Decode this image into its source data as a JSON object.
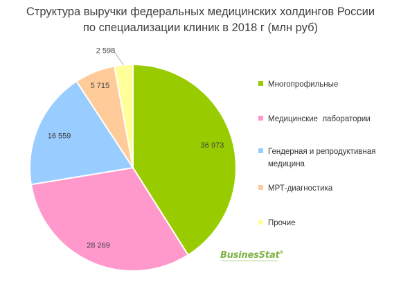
{
  "title": {
    "line1": "Структура выручки федеральных медицинских холдингов России",
    "line2": "по специализации клиник в 2018 г (млн руб)"
  },
  "chart_data": {
    "type": "pie",
    "title": "Структура выручки федеральных медицинских холдингов России по специализации клиник в 2018 г (млн руб)",
    "slices": [
      {
        "label": "Многопрофильные",
        "value": 36973,
        "value_text": "36 973",
        "color": "#99cc00"
      },
      {
        "label": "Медицинские  лаборатории",
        "value": 28269,
        "value_text": "28 269",
        "color": "#ff99cc"
      },
      {
        "label": "Гендерная и репродуктивная медицина",
        "value": 16559,
        "value_text": "16 559",
        "color": "#99ccff"
      },
      {
        "label": "МРТ-диагностика",
        "value": 5715,
        "value_text": "5 715",
        "color": "#ffcc99"
      },
      {
        "label": "Прочие",
        "value": 2598,
        "value_text": "2 598",
        "color": "#ffff99"
      }
    ],
    "start_angle": "12 o'clock",
    "direction": "clockwise",
    "legend_position": "right"
  },
  "legend": {
    "items": [
      {
        "lines": [
          "Многопрофильные"
        ]
      },
      {
        "lines": [
          "Медицинские  лаборатории"
        ]
      },
      {
        "lines": [
          "Гендерная и репродуктивная",
          "медицина"
        ]
      },
      {
        "lines": [
          "МРТ-диагностика"
        ]
      },
      {
        "lines": [
          "Прочие"
        ]
      }
    ]
  },
  "logo": {
    "text": "BusinesStat",
    "mark": "®"
  }
}
